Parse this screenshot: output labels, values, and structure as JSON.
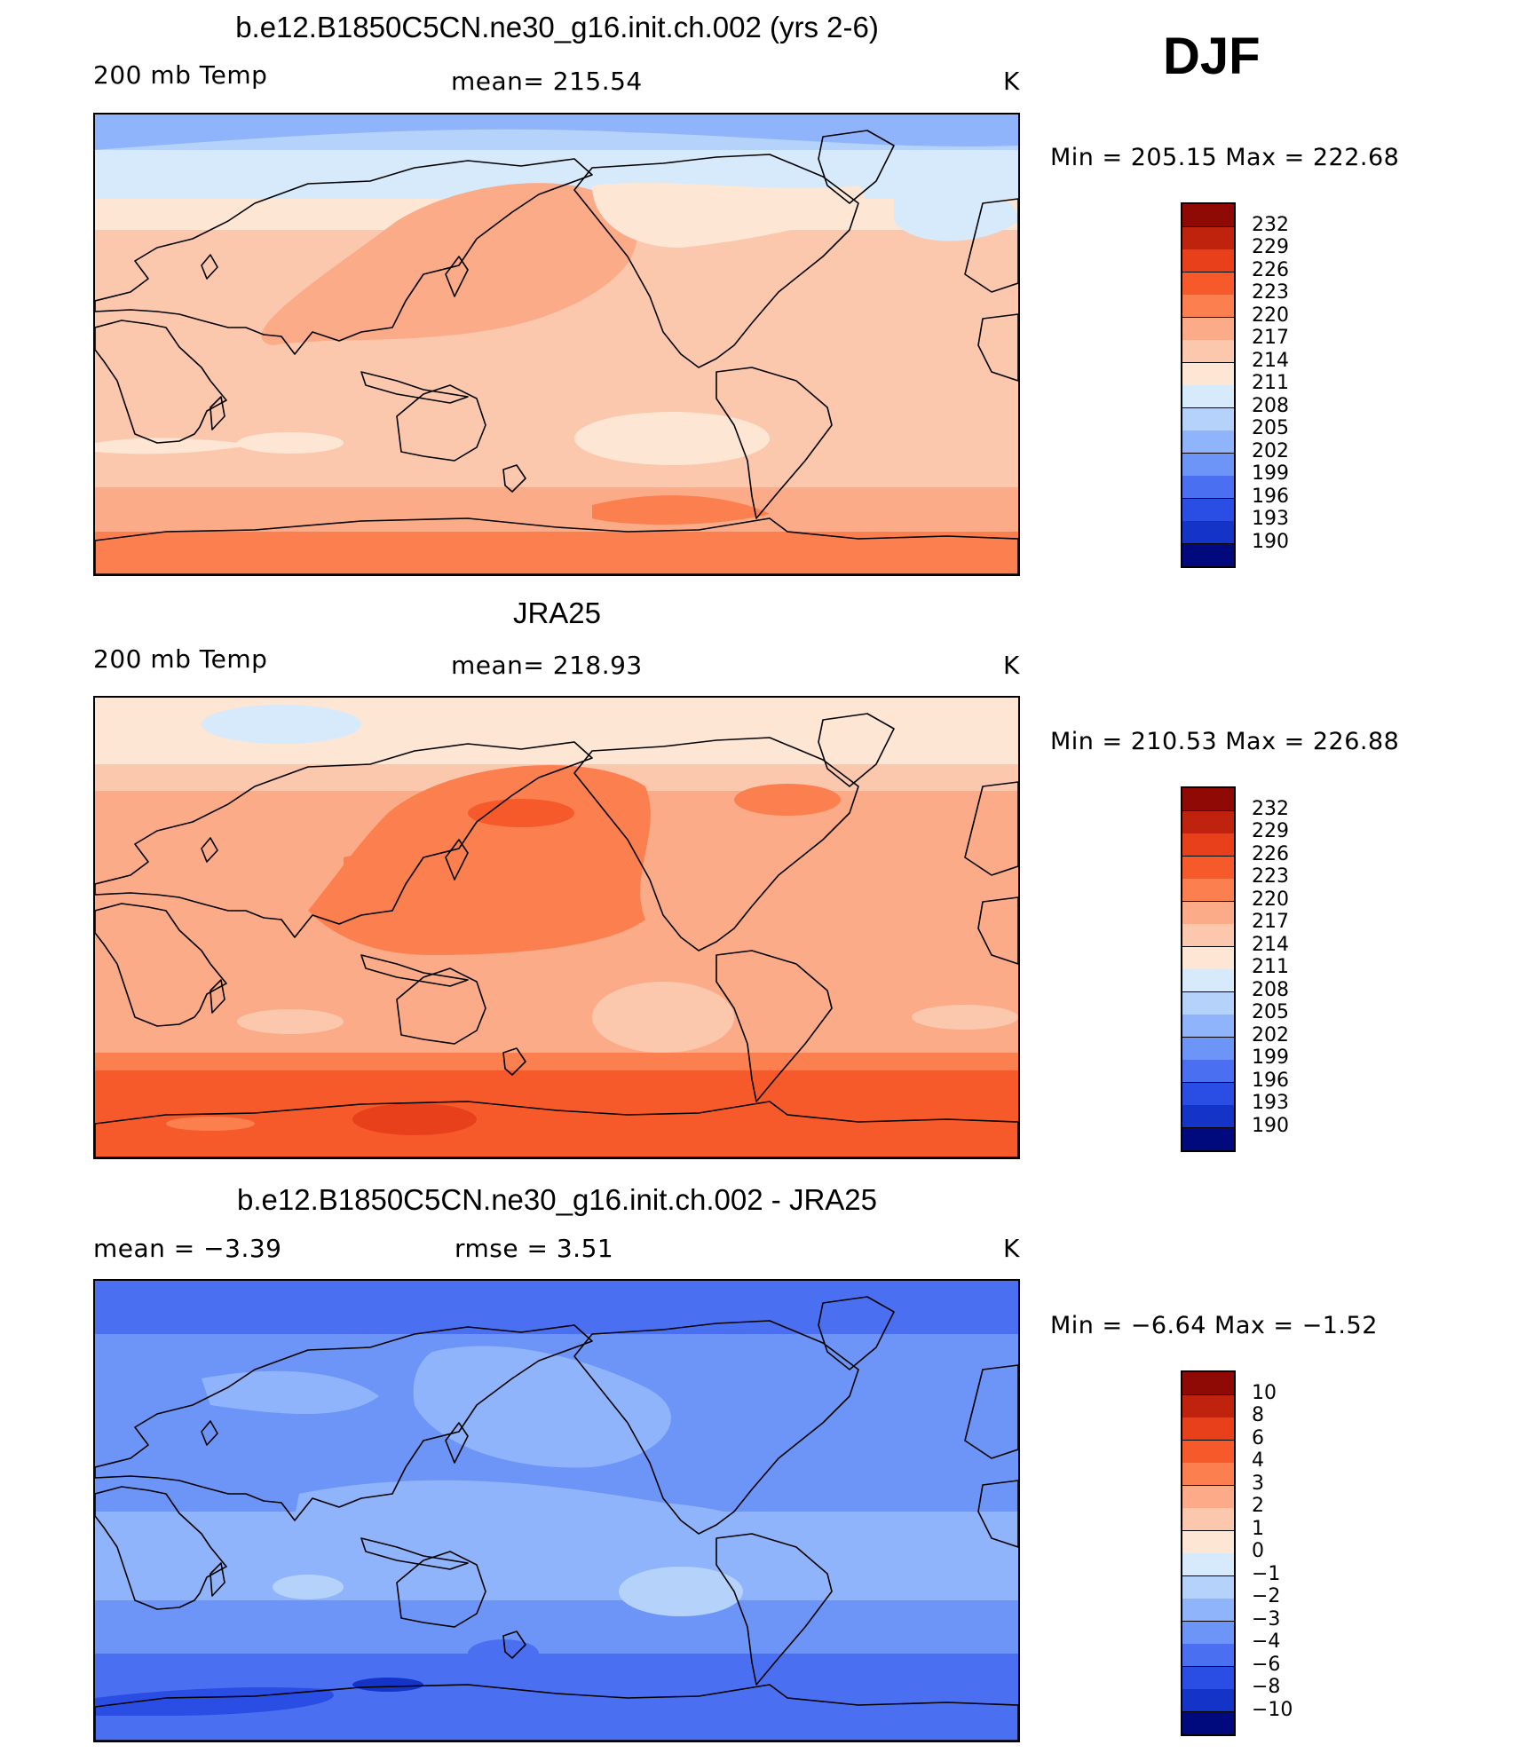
{
  "season": "DJF",
  "colors": {
    "warm": [
      "#fde6d4",
      "#fcc8ad",
      "#fbab88",
      "#fb7f4f",
      "#f65a2b",
      "#e8401b",
      "#c0230d",
      "#8f0a05"
    ],
    "cool": [
      "#d6eafc",
      "#b5d2fb",
      "#90b4fb",
      "#6d95f8",
      "#4a70f1",
      "#2a4ee4",
      "#1434c8",
      "#071c9e",
      "#000a7c"
    ]
  },
  "panels": [
    {
      "id": "model",
      "title": "b.e12.B1850C5CN.ne30_g16.init.ch.002 (yrs 2-6)",
      "left": "200 mb Temp",
      "center": "mean=  215.54",
      "unit": "K",
      "min_label": "Min  =  205.15  Max  =  222.68",
      "colorbar_levels": [
        "232",
        "229",
        "226",
        "223",
        "220",
        "217",
        "214",
        "211",
        "208",
        "205",
        "202",
        "199",
        "196",
        "193",
        "190"
      ]
    },
    {
      "id": "obs",
      "title": "JRA25",
      "left": "200 mb Temp",
      "center": "mean=  218.93",
      "unit": "K",
      "min_label": "Min  =  210.53  Max  =  226.88",
      "colorbar_levels": [
        "232",
        "229",
        "226",
        "223",
        "220",
        "217",
        "214",
        "211",
        "208",
        "205",
        "202",
        "199",
        "196",
        "193",
        "190"
      ]
    },
    {
      "id": "diff",
      "title": "b.e12.B1850C5CN.ne30_g16.init.ch.002 - JRA25",
      "left": "mean  =     −3.39",
      "center": "rmse  =      3.51",
      "unit": "K",
      "min_label": "Min  =    −6.64  Max  =    −1.52",
      "colorbar_levels": [
        "10",
        "8",
        "6",
        "4",
        "3",
        "2",
        "1",
        "0",
        "−1",
        "−2",
        "−3",
        "−4",
        "−6",
        "−8",
        "−10"
      ]
    }
  ]
}
